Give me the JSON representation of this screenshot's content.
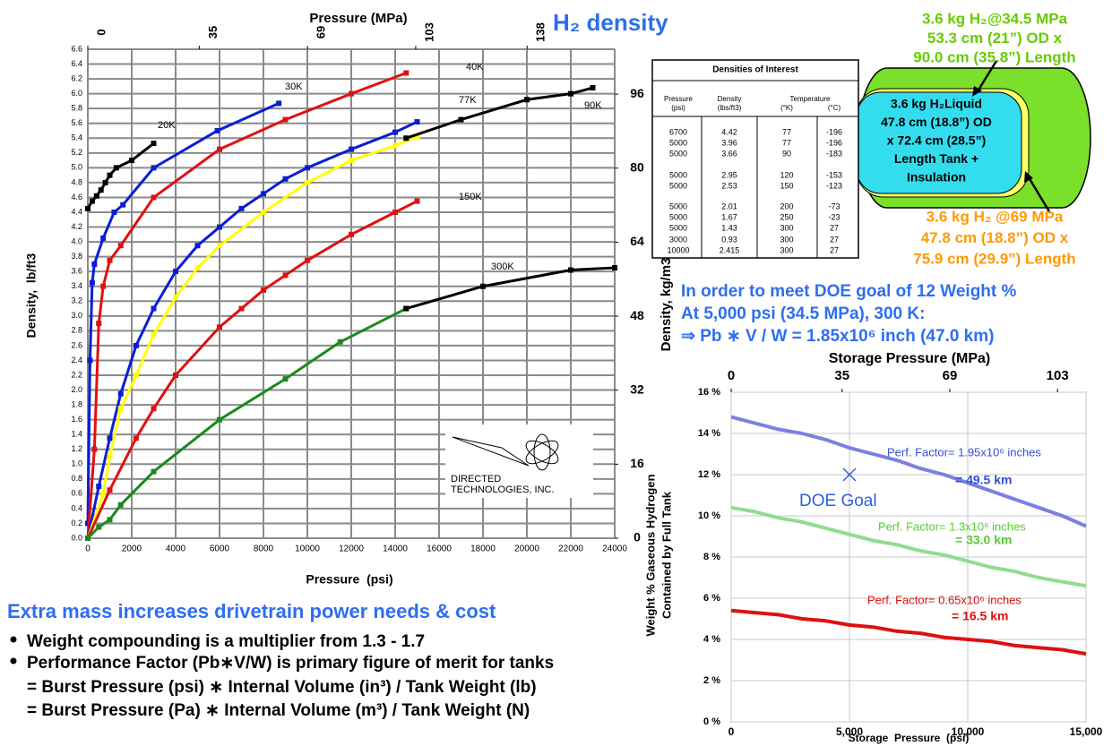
{
  "title": "H₂ density",
  "chart_data": [
    {
      "type": "line",
      "x_title": "Pressure  (psi)",
      "x2_title": "Pressure (MPa)",
      "y_title": "Density,  lb/ft3",
      "y2_title": "Density, kg/m3",
      "xlim": [
        0,
        24000
      ],
      "xticks": [
        0,
        2000,
        4000,
        6000,
        8000,
        10000,
        12000,
        14000,
        16000,
        18000,
        20000,
        22000,
        24000
      ],
      "x2lim": [
        0,
        165.5
      ],
      "x2ticks": [
        0,
        35,
        69,
        103,
        138
      ],
      "ylim": [
        0,
        6.6
      ],
      "yticks": [
        {
          "value": 0,
          "label": "0.0"
        },
        0.2,
        0.4,
        0.6,
        0.8,
        {
          "value": 1,
          "label": "1.0"
        },
        1.2,
        1.4,
        1.6,
        1.8,
        {
          "value": 2,
          "label": "2.0"
        },
        2.2,
        2.4,
        2.6,
        2.8,
        {
          "value": 3,
          "label": "3.0"
        },
        3.2,
        3.4,
        3.6,
        3.8,
        {
          "value": 4,
          "label": "4.0"
        },
        4.2,
        4.4,
        4.6,
        4.8,
        {
          "value": 5,
          "label": "5.0"
        },
        5.2,
        5.4,
        5.6,
        5.8,
        {
          "value": 6,
          "label": "6.0"
        },
        6.2,
        6.4,
        6.6
      ],
      "y2lim": [
        0,
        105.7
      ],
      "y2ticks": [
        0,
        16,
        32,
        48,
        64,
        80,
        96
      ],
      "grid": true,
      "series": [
        {
          "name": "20K",
          "color": "#000000",
          "x": [
            0,
            200,
            400,
            600,
            800,
            1000,
            1300,
            2000,
            3000
          ],
          "values": [
            4.45,
            4.55,
            4.62,
            4.7,
            4.8,
            4.9,
            5.0,
            5.1,
            5.33
          ]
        },
        {
          "name": "30K",
          "color": "#0a1ed2",
          "x": [
            0,
            100,
            200,
            300,
            700,
            1200,
            1600,
            3000,
            5900,
            8700
          ],
          "values": [
            0.2,
            2.4,
            3.45,
            3.7,
            4.05,
            4.4,
            4.5,
            5.0,
            5.5,
            5.87
          ]
        },
        {
          "name": "40K",
          "color": "#e01010",
          "x": [
            0,
            300,
            500,
            700,
            1000,
            1500,
            3000,
            6000,
            9000,
            12000,
            14500
          ],
          "values": [
            0,
            1.2,
            2.9,
            3.4,
            3.75,
            3.95,
            4.6,
            5.25,
            5.65,
            6.0,
            6.28
          ]
        },
        {
          "name": "77K",
          "color": "#0a1ed2",
          "x": [
            0,
            500,
            1000,
            1500,
            2200,
            3000,
            4000,
            5000,
            6000,
            7000,
            8000,
            9000,
            10000,
            12000,
            14000,
            15000
          ],
          "values": [
            0,
            0.7,
            1.35,
            1.95,
            2.6,
            3.1,
            3.6,
            3.95,
            4.2,
            4.45,
            4.65,
            4.85,
            5.0,
            5.25,
            5.48,
            5.62
          ]
        },
        {
          "color": "#ffff00",
          "x": [
            0,
            700,
            1000,
            1500,
            2200,
            3000,
            4000,
            5000,
            6000,
            8000,
            10000,
            12000,
            14000,
            15000
          ],
          "values": [
            0,
            0.6,
            1.1,
            1.75,
            2.2,
            2.75,
            3.25,
            3.65,
            3.95,
            4.4,
            4.8,
            5.1,
            5.3,
            5.42
          ]
        },
        {
          "name": "90K",
          "color": "#000000",
          "x": [
            14500,
            17000,
            20000,
            22000,
            23000
          ],
          "values": [
            5.4,
            5.65,
            5.92,
            6.0,
            6.08
          ]
        },
        {
          "name": "150K",
          "color": "#e01010",
          "x": [
            0,
            1000,
            2200,
            3000,
            4000,
            6000,
            7000,
            8000,
            9000,
            10000,
            12000,
            14000,
            15000
          ],
          "values": [
            0,
            0.65,
            1.35,
            1.75,
            2.2,
            2.85,
            3.1,
            3.35,
            3.55,
            3.75,
            4.1,
            4.4,
            4.55
          ]
        },
        {
          "color": "#1a8a1a",
          "x": [
            0,
            500,
            1000,
            1500,
            3000,
            6000,
            9000,
            11500,
            14500
          ],
          "values": [
            0,
            0.15,
            0.25,
            0.45,
            0.9,
            1.6,
            2.15,
            2.65,
            3.1
          ]
        },
        {
          "name": "300K",
          "color": "#000000",
          "x": [
            14500,
            18000,
            22000,
            24000
          ],
          "values": [
            3.1,
            3.4,
            3.62,
            3.65
          ]
        }
      ]
    },
    {
      "type": "line",
      "x_title": "Storage  Pressure  (psi)",
      "x2_title": "Storage Pressure (MPa)",
      "y_title": [
        "Weight % Gaseous Hydrogen",
        "Contained by Full Tank"
      ],
      "xlim": [
        0,
        15000
      ],
      "xticks": [
        0,
        {
          "value": 5000,
          "label": "5,000"
        },
        {
          "value": 10000,
          "label": "10,000"
        },
        {
          "value": 15000,
          "label": "15,000"
        }
      ],
      "x2lim": [
        0,
        112
      ],
      "x2ticks": [
        0,
        35,
        69,
        103
      ],
      "ylim": [
        0,
        16
      ],
      "yticks": [
        {
          "value": 0,
          "label": "0 %"
        },
        {
          "value": 2,
          "label": "2 %"
        },
        {
          "value": 4,
          "label": "4 %"
        },
        {
          "value": 6,
          "label": "6 %"
        },
        {
          "value": 8,
          "label": "8 %"
        },
        {
          "value": 10,
          "label": "10 %"
        },
        {
          "value": 12,
          "label": "12 %"
        },
        {
          "value": 14,
          "label": "14 %"
        },
        {
          "value": 16,
          "label": "16 %"
        }
      ],
      "grid": true,
      "x": [
        0,
        1000,
        2000,
        3000,
        4000,
        5000,
        6000,
        7000,
        8000,
        9000,
        10000,
        11000,
        12000,
        13000,
        14000,
        15000
      ],
      "series": [
        {
          "color": "#7b80e2",
          "values": [
            14.8,
            14.5,
            14.2,
            14.0,
            13.7,
            13.3,
            13.0,
            12.7,
            12.3,
            12.0,
            11.6,
            11.2,
            10.8,
            10.4,
            10.0,
            9.5
          ]
        },
        {
          "color": "#92dc8e",
          "values": [
            10.4,
            10.2,
            9.9,
            9.7,
            9.4,
            9.1,
            8.8,
            8.6,
            8.3,
            8.1,
            7.8,
            7.5,
            7.3,
            7.0,
            6.8,
            6.6
          ]
        },
        {
          "color": "#dd1111",
          "values": [
            5.4,
            5.3,
            5.2,
            5.0,
            4.9,
            4.7,
            4.6,
            4.4,
            4.3,
            4.1,
            4.0,
            3.9,
            3.7,
            3.6,
            3.5,
            3.3
          ]
        }
      ],
      "annotations": [
        {
          "text": "Perf. Factor= 1.95x10⁶ inches",
          "color": "#3050d8"
        },
        {
          "text": "= 49.5 km",
          "color": "#3050d8"
        },
        {
          "text": "Perf. Factor=  1.3x10⁶ inches",
          "color": "#55cc33"
        },
        {
          "text": "= 33.0 km",
          "color": "#55cc33"
        },
        {
          "text": "Perf. Factor=  0.65x10⁶ inches",
          "color": "#dd1111"
        },
        {
          "text": "= 16.5 km",
          "color": "#dd1111"
        }
      ],
      "points": [
        {
          "name": "DOE Goal",
          "x": 5000,
          "y": 12,
          "color": "#3060e0"
        }
      ]
    }
  ],
  "table": {
    "title": "Densities of Interest",
    "header_top": [
      "Pressure",
      "Density",
      "Temperature"
    ],
    "header_units": [
      "(psi)",
      "(lbs/ft3)",
      "(°K)",
      "(°C)"
    ],
    "rows": [
      [
        "6700",
        "4.42",
        "77",
        "-196"
      ],
      [
        "5000",
        "3.96",
        "77",
        "-196"
      ],
      [
        "5000",
        "3.66",
        "90",
        "-183"
      ],
      [
        "5000",
        "2.95",
        "120",
        "-153"
      ],
      [
        "5000",
        "2.53",
        "150",
        "-123"
      ],
      [
        "5000",
        "2.01",
        "200",
        "-73"
      ],
      [
        "5000",
        "1.67",
        "250",
        "-23"
      ],
      [
        "5000",
        "1.43",
        "300",
        "27"
      ],
      [
        "3000",
        "0.93",
        "300",
        "27"
      ],
      [
        "10000",
        "2.415",
        "300",
        "27"
      ]
    ]
  },
  "tank": {
    "outer": [
      "3.6 kg H₂@34.5 MPa",
      "53.3 cm (21”) OD x",
      "90.0 cm (35.8”) Length"
    ],
    "inner": [
      "3.6 kg H₂Liquid",
      "47.8 cm (18.8”) OD",
      "x 72.4 cm (28.5”)",
      "Length Tank +",
      "Insulation"
    ],
    "alt": [
      "3.6 kg H₂ @69 MPa",
      "47.8 cm (18.8”) OD x",
      "75.9 cm (29.9”) Length"
    ]
  },
  "logo": [
    "DIRECTED",
    "TECHNOLOGIES, INC."
  ],
  "goal_text": [
    "In order to meet DOE goal of 12 Weight %",
    "At 5,000 psi (34.5 MPa), 300 K:",
    "⇒ Pb ∗ V / W = 1.85x10⁶ inch (47.0 km)"
  ],
  "notes": {
    "heading": "Extra mass increases drivetrain power needs & cost",
    "bullets": [
      "Weight compounding is a multiplier from 1.3 - 1.7",
      "Performance Factor (Pb∗V/W) is primary figure of merit for tanks"
    ],
    "lines": [
      "= Burst Pressure (psi) ∗ Internal Volume (in³) / Tank Weight (lb)",
      "= Burst Pressure (Pa) ∗ Internal Volume (m³) / Tank Weight (N)"
    ]
  }
}
